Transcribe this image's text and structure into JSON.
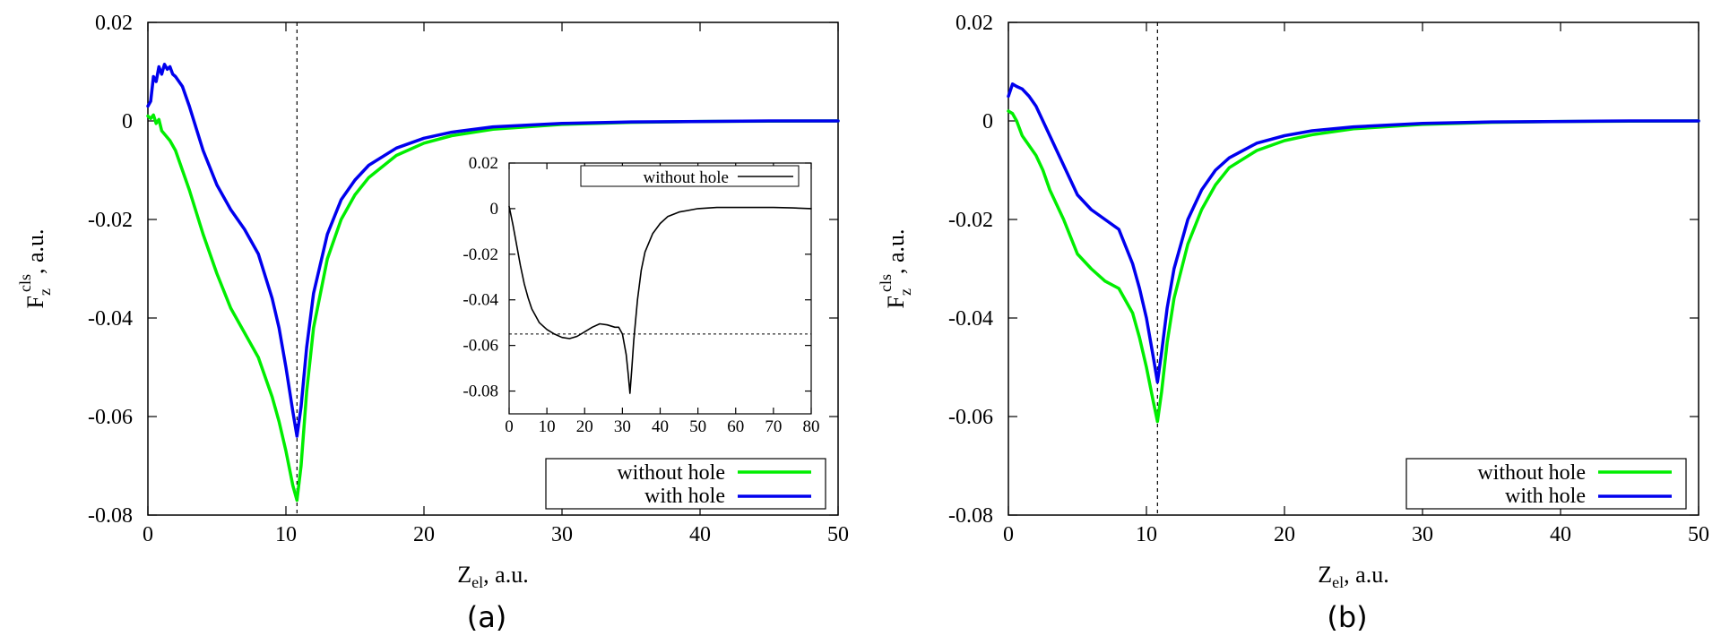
{
  "chart_data": [
    {
      "id": "a",
      "type": "line",
      "panel_label": "(a)",
      "xlabel": {
        "main": "Z",
        "sub": "el",
        "rest": ", a.u."
      },
      "ylabel": {
        "main": "F",
        "sub": "z",
        "sup": "cls",
        "rest": ", a.u."
      },
      "xlim": [
        0,
        50
      ],
      "ylim": [
        -0.08,
        0.02
      ],
      "xticks": [
        0,
        10,
        20,
        30,
        40,
        50
      ],
      "xtick_labels": [
        "0",
        "10",
        "20",
        "30",
        "40",
        "50"
      ],
      "yticks": [
        0.02,
        0,
        -0.02,
        -0.04,
        -0.06,
        -0.08
      ],
      "ytick_labels": [
        "0.02",
        "0",
        "-0.02",
        "-0.04",
        "-0.06",
        "-0.08"
      ],
      "vline_x": 10.8,
      "legend_position": "bottom-right",
      "series": [
        {
          "name": "without hole",
          "color": "#00ee00",
          "x": [
            0,
            0.2,
            0.4,
            0.6,
            0.8,
            1,
            1.3,
            1.6,
            2,
            2.5,
            3,
            4,
            5,
            6,
            7,
            8,
            9,
            9.5,
            10,
            10.5,
            10.8,
            11.1,
            11.5,
            12,
            13,
            14,
            15,
            16,
            18,
            20,
            22,
            25,
            30,
            35,
            40,
            45,
            50
          ],
          "y": [
            0.001,
            0.0005,
            0.0012,
            -0.0005,
            0.0003,
            -0.002,
            -0.003,
            -0.004,
            -0.006,
            -0.01,
            -0.014,
            -0.023,
            -0.031,
            -0.038,
            -0.043,
            -0.048,
            -0.056,
            -0.061,
            -0.067,
            -0.074,
            -0.077,
            -0.07,
            -0.055,
            -0.042,
            -0.028,
            -0.02,
            -0.015,
            -0.0115,
            -0.007,
            -0.0045,
            -0.003,
            -0.0017,
            -0.0007,
            -0.0003,
            -0.0001,
            -5e-05,
            0
          ]
        },
        {
          "name": "with hole",
          "color": "#0000ee",
          "x": [
            0,
            0.2,
            0.4,
            0.6,
            0.8,
            1,
            1.2,
            1.4,
            1.6,
            1.8,
            2,
            2.5,
            3,
            4,
            5,
            6,
            7,
            8,
            9,
            9.5,
            10,
            10.5,
            10.8,
            11.1,
            11.5,
            12,
            13,
            14,
            15,
            16,
            18,
            20,
            22,
            25,
            30,
            35,
            40,
            45,
            50
          ],
          "y": [
            0.003,
            0.004,
            0.009,
            0.008,
            0.011,
            0.0095,
            0.0115,
            0.0105,
            0.011,
            0.0095,
            0.009,
            0.007,
            0.003,
            -0.006,
            -0.013,
            -0.018,
            -0.022,
            -0.027,
            -0.036,
            -0.042,
            -0.05,
            -0.059,
            -0.064,
            -0.058,
            -0.046,
            -0.035,
            -0.023,
            -0.016,
            -0.012,
            -0.009,
            -0.0055,
            -0.0035,
            -0.0023,
            -0.0012,
            -0.0005,
            -0.0002,
            -0.0001,
            0,
            0
          ]
        }
      ],
      "inset": {
        "type": "line",
        "xlim": [
          0,
          80
        ],
        "ylim": [
          -0.09,
          0.02
        ],
        "xticks": [
          0,
          10,
          20,
          30,
          40,
          50,
          60,
          70,
          80
        ],
        "xtick_labels": [
          "0",
          "10",
          "20",
          "30",
          "40",
          "50",
          "60",
          "70",
          "80"
        ],
        "yticks": [
          0.02,
          0,
          -0.02,
          -0.04,
          -0.06,
          -0.08
        ],
        "ytick_labels": [
          "0.02",
          "0",
          "-0.02",
          "-0.04",
          "-0.06",
          "-0.08"
        ],
        "hline_y": -0.055,
        "legend_position": "top-right",
        "series": [
          {
            "name": "without hole",
            "color": "#000000",
            "x": [
              0,
              1,
              2,
              3,
              4,
              5,
              6,
              7,
              8,
              10,
              12,
              14,
              16,
              18,
              20,
              22,
              24,
              26,
              28,
              29,
              30,
              31,
              31.5,
              32,
              32.5,
              33,
              34,
              35,
              36,
              38,
              40,
              42,
              45,
              50,
              55,
              60,
              65,
              70,
              75,
              80
            ],
            "y": [
              0.001,
              -0.007,
              -0.016,
              -0.025,
              -0.033,
              -0.039,
              -0.044,
              -0.047,
              -0.05,
              -0.053,
              -0.055,
              -0.0565,
              -0.057,
              -0.056,
              -0.054,
              -0.052,
              -0.0505,
              -0.051,
              -0.052,
              -0.052,
              -0.055,
              -0.064,
              -0.072,
              -0.081,
              -0.07,
              -0.058,
              -0.04,
              -0.027,
              -0.019,
              -0.011,
              -0.0065,
              -0.0035,
              -0.0015,
              0,
              0.0005,
              0.0005,
              0.0005,
              0.0005,
              0.0003,
              0
            ]
          }
        ]
      }
    },
    {
      "id": "b",
      "type": "line",
      "panel_label": "(b)",
      "xlabel": {
        "main": "Z",
        "sub": "el",
        "rest": ", a.u."
      },
      "ylabel": {
        "main": "F",
        "sub": "z",
        "sup": "cls",
        "rest": ", a.u."
      },
      "xlim": [
        0,
        50
      ],
      "ylim": [
        -0.08,
        0.02
      ],
      "xticks": [
        0,
        10,
        20,
        30,
        40,
        50
      ],
      "xtick_labels": [
        "0",
        "10",
        "20",
        "30",
        "40",
        "50"
      ],
      "yticks": [
        0.02,
        0,
        -0.02,
        -0.04,
        -0.06,
        -0.08
      ],
      "ytick_labels": [
        "0.02",
        "0",
        "-0.02",
        "-0.04",
        "-0.06",
        "-0.08"
      ],
      "vline_x": 10.8,
      "legend_position": "bottom-right",
      "series": [
        {
          "name": "without hole",
          "color": "#00ee00",
          "x": [
            0,
            0.3,
            0.6,
            1,
            1.5,
            2,
            2.5,
            3,
            4,
            5,
            6,
            7,
            8,
            9,
            9.5,
            10,
            10.5,
            10.8,
            11.1,
            11.5,
            12,
            13,
            14,
            15,
            16,
            18,
            20,
            22,
            25,
            30,
            35,
            40,
            45,
            50
          ],
          "y": [
            0.002,
            0.0015,
            0.0,
            -0.003,
            -0.005,
            -0.007,
            -0.01,
            -0.014,
            -0.02,
            -0.027,
            -0.03,
            -0.0325,
            -0.034,
            -0.039,
            -0.044,
            -0.05,
            -0.057,
            -0.061,
            -0.055,
            -0.045,
            -0.036,
            -0.025,
            -0.018,
            -0.013,
            -0.0095,
            -0.006,
            -0.004,
            -0.0028,
            -0.0016,
            -0.0007,
            -0.0003,
            -0.0001,
            -5e-05,
            0
          ]
        },
        {
          "name": "with hole",
          "color": "#0000ee",
          "x": [
            0,
            0.3,
            0.6,
            1,
            1.5,
            2,
            2.5,
            3,
            4,
            5,
            6,
            7,
            8,
            9,
            9.5,
            10,
            10.5,
            10.8,
            11.1,
            11.5,
            12,
            13,
            14,
            15,
            16,
            18,
            20,
            22,
            25,
            30,
            35,
            40,
            45,
            50
          ],
          "y": [
            0.005,
            0.0075,
            0.007,
            0.0065,
            0.005,
            0.003,
            0.0,
            -0.003,
            -0.009,
            -0.015,
            -0.018,
            -0.02,
            -0.022,
            -0.029,
            -0.034,
            -0.04,
            -0.048,
            -0.053,
            -0.047,
            -0.038,
            -0.03,
            -0.02,
            -0.014,
            -0.01,
            -0.0075,
            -0.0045,
            -0.003,
            -0.002,
            -0.0012,
            -0.0005,
            -0.0002,
            -0.0001,
            0,
            0
          ]
        }
      ]
    }
  ]
}
